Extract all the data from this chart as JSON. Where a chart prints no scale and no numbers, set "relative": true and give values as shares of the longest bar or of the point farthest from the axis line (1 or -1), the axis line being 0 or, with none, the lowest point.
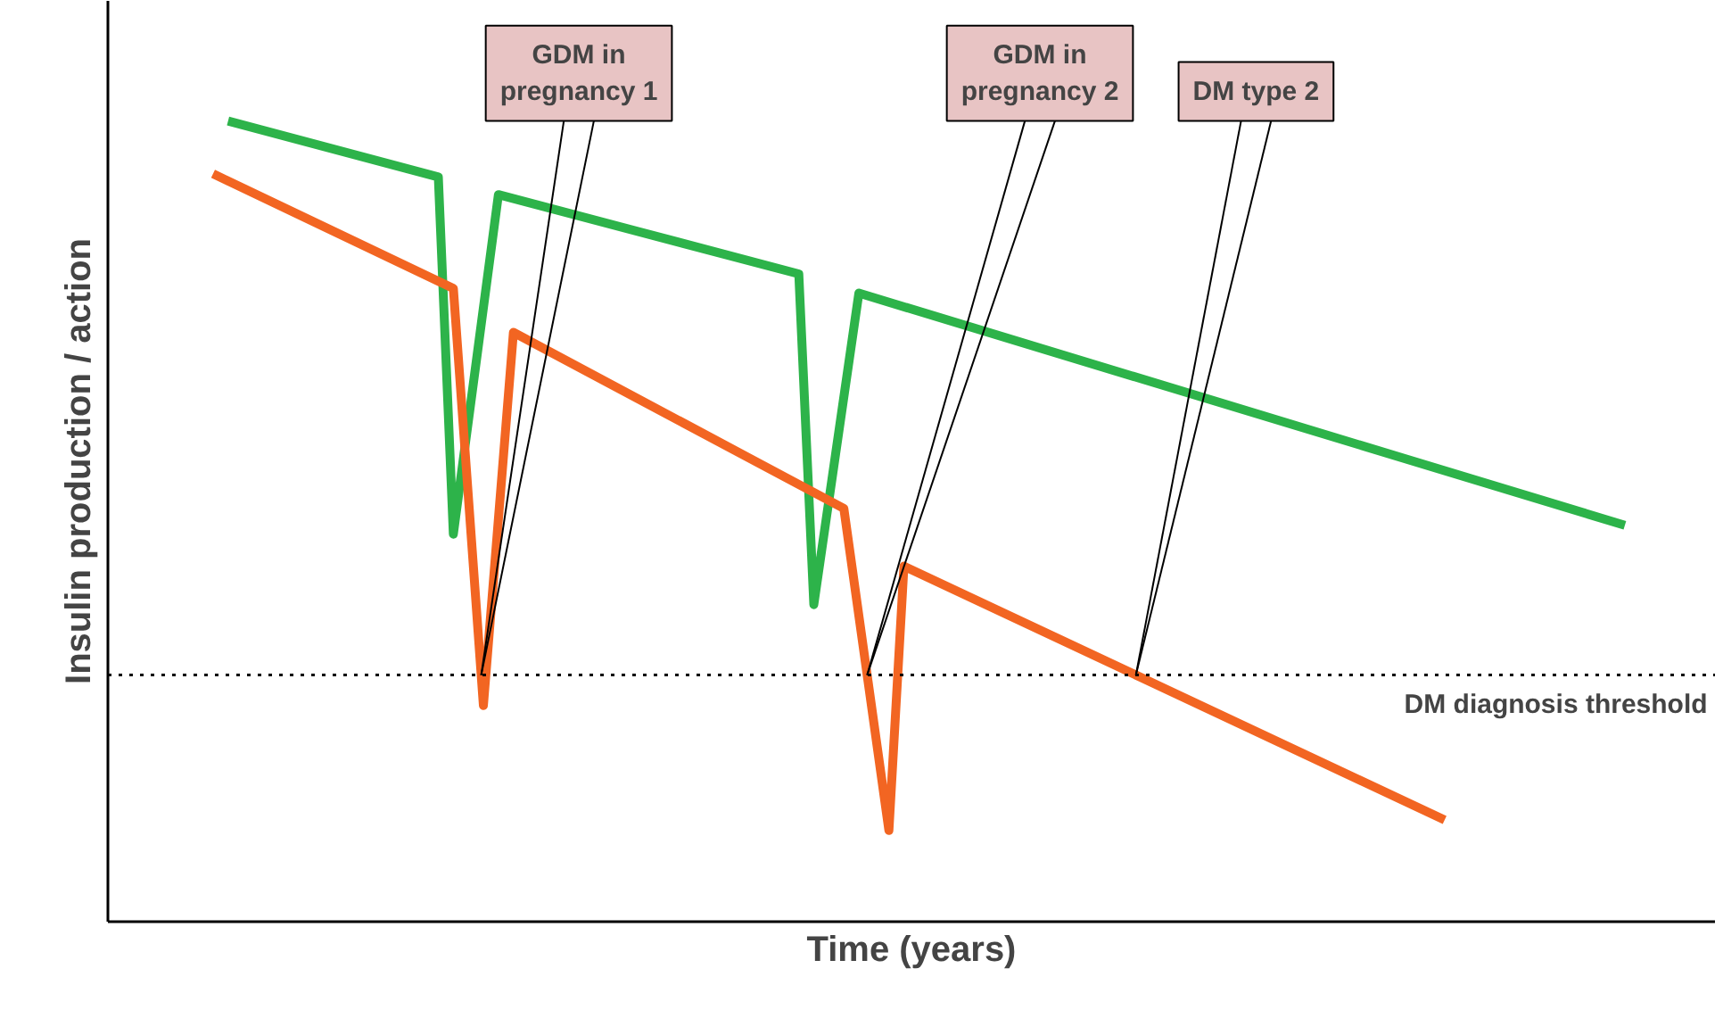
{
  "chart_data": {
    "type": "line",
    "relative": true,
    "xlabel": "Time (years)",
    "ylabel": "Insulin production / action",
    "line_style": "solid",
    "marker": "none",
    "categories": [
      null,
      null,
      null,
      null,
      null,
      null,
      null,
      null,
      null,
      null,
      null,
      null,
      null,
      null,
      null,
      null,
      null,
      null,
      null,
      null,
      null,
      null,
      null,
      null,
      null,
      null,
      null,
      null,
      null,
      null,
      null,
      null,
      null,
      null,
      null,
      null,
      null,
      null,
      null,
      null,
      null,
      null,
      null,
      null,
      null,
      null,
      null,
      null,
      null,
      null,
      null,
      null,
      null,
      null,
      null,
      null,
      null,
      null,
      null,
      null,
      null,
      null,
      null,
      null,
      null,
      null,
      null,
      null,
      null,
      null,
      null,
      null,
      null,
      null,
      null,
      null,
      null,
      null,
      null,
      null,
      null,
      null,
      null,
      null,
      null,
      null,
      null,
      null,
      null,
      null,
      null,
      null,
      null,
      null,
      null,
      null,
      null,
      null,
      null,
      null
    ],
    "series": [
      {
        "color": "#2db34a",
        "values": [
          null,
          null,
          null,
          null,
          1.0,
          null,
          null,
          null,
          null,
          null,
          null,
          null,
          null,
          null,
          null,
          null,
          null,
          null,
          0.93,
          0.484,
          null,
          null,
          0.908,
          null,
          null,
          null,
          null,
          null,
          null,
          null,
          null,
          null,
          null,
          null,
          null,
          null,
          null,
          null,
          null,
          null,
          null,
          null,
          0.809,
          0.396,
          null,
          null,
          0.785,
          null,
          null,
          null,
          null,
          null,
          null,
          null,
          null,
          null,
          null,
          null,
          null,
          null,
          null,
          null,
          null,
          null,
          null,
          null,
          null,
          null,
          null,
          null,
          null,
          null,
          null,
          null,
          null,
          null,
          null,
          null,
          null,
          null,
          null,
          null,
          null,
          null,
          null,
          null,
          null,
          null,
          null,
          null,
          null,
          null,
          null,
          null,
          null,
          null,
          null,
          0.495,
          null,
          null
        ]
      },
      {
        "color": "#f26522",
        "values": [
          null,
          null,
          null,
          0.934,
          null,
          null,
          null,
          null,
          null,
          null,
          null,
          null,
          null,
          null,
          null,
          null,
          null,
          null,
          null,
          0.791,
          null,
          0.27,
          null,
          0.736,
          null,
          null,
          null,
          null,
          null,
          null,
          null,
          null,
          null,
          null,
          null,
          null,
          null,
          null,
          null,
          null,
          null,
          null,
          null,
          null,
          null,
          0.516,
          null,
          null,
          0.114,
          0.444,
          null,
          null,
          null,
          null,
          null,
          null,
          null,
          null,
          null,
          null,
          null,
          null,
          null,
          null,
          null,
          null,
          null,
          null,
          null,
          null,
          null,
          null,
          null,
          null,
          null,
          null,
          null,
          null,
          null,
          null,
          null,
          null,
          null,
          null,
          null,
          0.127,
          null,
          null,
          null,
          null,
          null,
          null,
          null,
          null,
          null,
          null,
          null,
          null,
          null,
          null
        ]
      }
    ],
    "ref_lines": [
      {
        "axis": "y",
        "value": 0.308,
        "label": "DM diagnosis threshold",
        "color": "#000000",
        "line_style": "dotted"
      }
    ],
    "annotations": [
      "GDM in pregnancy 1",
      "GDM in pregnancy 2",
      "DM type 2"
    ]
  }
}
